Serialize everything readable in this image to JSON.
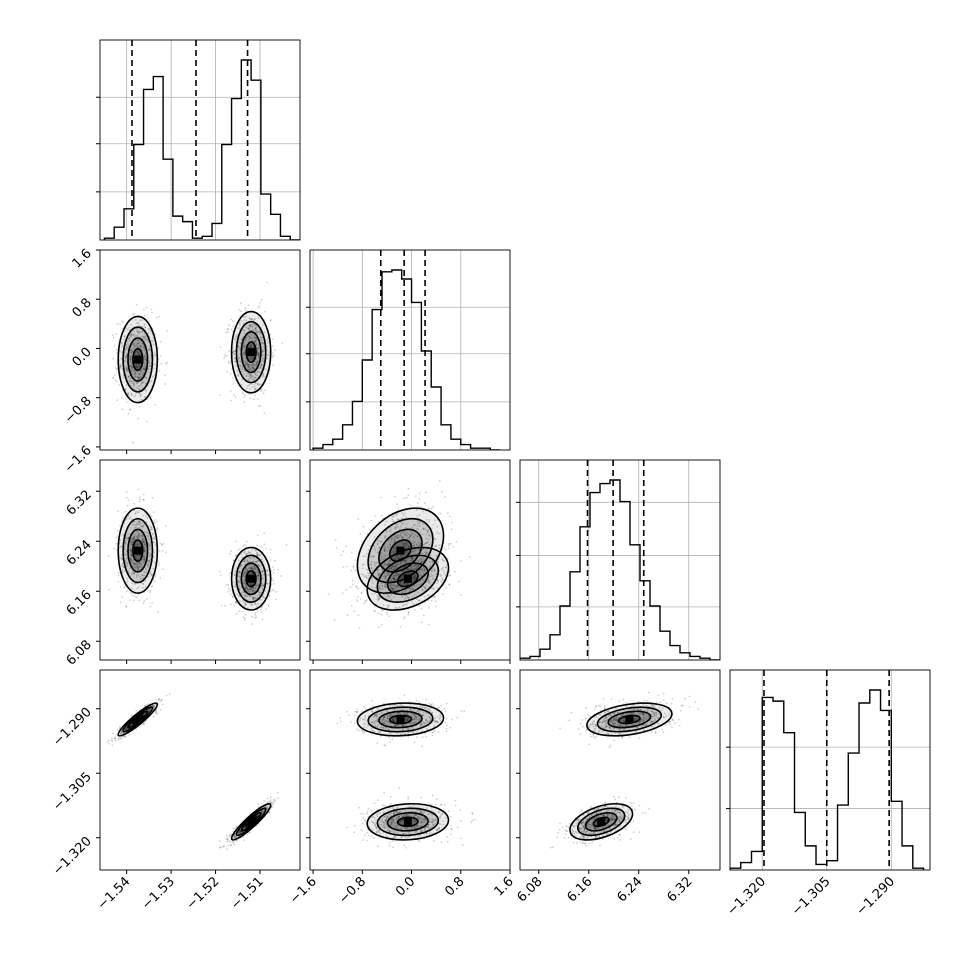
{
  "chart_data": {
    "type": "corner",
    "grid": true,
    "parameters": [
      {
        "axis_ticks": [
          -1.54,
          -1.53,
          -1.52,
          -1.51
        ],
        "tick_labels": [
          "−1.54",
          "−1.53",
          "−1.52",
          "−1.51"
        ],
        "range": [
          -1.546,
          -1.501
        ],
        "quantiles": [
          -1.5388,
          -1.5244,
          -1.5128
        ],
        "histogram": {
          "bin_edges": [
            -1.545,
            -1.5428,
            -1.5406,
            -1.5384,
            -1.5362,
            -1.534,
            -1.5318,
            -1.5296,
            -1.5274,
            -1.5252,
            -1.523,
            -1.5208,
            -1.5186,
            -1.5164,
            -1.5142,
            -1.512,
            -1.5098,
            -1.5076,
            -1.5054,
            -1.5032,
            -1.501
          ],
          "counts": [
            0.01,
            0.07,
            0.17,
            0.52,
            0.82,
            0.89,
            0.44,
            0.13,
            0.1,
            0.01,
            0.02,
            0.09,
            0.52,
            0.77,
            0.98,
            0.87,
            0.25,
            0.14,
            0.02,
            0.0
          ]
        },
        "hist_gridlines": [
          0.29,
          0.58,
          0.86
        ]
      },
      {
        "axis_ticks": [
          -1.6,
          -0.8,
          0.0,
          0.8,
          1.6
        ],
        "tick_labels": [
          "−1.6",
          "−0.8",
          "0.0",
          "0.8",
          "1.6"
        ],
        "range": [
          -1.65,
          1.6
        ],
        "quantiles": [
          -0.5,
          -0.12,
          0.22
        ],
        "histogram": {
          "bin_edges": [
            -1.6,
            -1.44,
            -1.28,
            -1.12,
            -0.96,
            -0.8,
            -0.64,
            -0.48,
            -0.32,
            -0.16,
            0.0,
            0.16,
            0.32,
            0.48,
            0.64,
            0.8,
            0.96,
            1.12,
            1.28,
            1.44
          ],
          "counts": [
            0.01,
            0.03,
            0.06,
            0.14,
            0.27,
            0.5,
            0.78,
            0.99,
            1.0,
            0.95,
            0.82,
            0.55,
            0.35,
            0.14,
            0.06,
            0.03,
            0.01,
            0.01,
            0.0
          ]
        },
        "hist_gridlines": [
          0.29,
          0.58,
          0.86
        ]
      },
      {
        "axis_ticks": [
          6.08,
          6.16,
          6.24,
          6.32
        ],
        "tick_labels": [
          "6.08",
          "6.16",
          "6.24",
          "6.32"
        ],
        "range": [
          6.05,
          6.37
        ],
        "quantiles": [
          6.158,
          6.199,
          6.248
        ],
        "histogram": {
          "bin_edges": [
            6.05,
            6.066,
            6.082,
            6.098,
            6.114,
            6.13,
            6.146,
            6.162,
            6.178,
            6.194,
            6.21,
            6.226,
            6.242,
            6.258,
            6.274,
            6.29,
            6.306,
            6.322,
            6.338,
            6.354,
            6.37
          ],
          "counts": [
            0.01,
            0.02,
            0.06,
            0.14,
            0.3,
            0.49,
            0.74,
            0.93,
            0.98,
            1.0,
            0.88,
            0.64,
            0.44,
            0.3,
            0.16,
            0.08,
            0.04,
            0.02,
            0.01,
            0.0
          ]
        },
        "hist_gridlines": [
          0.32,
          0.63,
          0.95
        ]
      },
      {
        "axis_ticks": [
          -1.32,
          -1.305,
          -1.29
        ],
        "tick_labels": [
          "−1.320",
          "−1.305",
          "−1.290"
        ],
        "range": [
          -1.3275,
          -1.281
        ],
        "quantiles": [
          -1.3196,
          -1.305,
          -1.2905
        ],
        "histogram": {
          "bin_edges": [
            -1.3275,
            -1.325,
            -1.3225,
            -1.32,
            -1.3175,
            -1.315,
            -1.3125,
            -1.31,
            -1.3075,
            -1.305,
            -1.3025,
            -1.3,
            -1.2975,
            -1.295,
            -1.2925,
            -1.29,
            -1.2875,
            -1.285,
            -1.2825
          ],
          "counts": [
            0.01,
            0.04,
            0.1,
            0.93,
            0.91,
            0.74,
            0.31,
            0.13,
            0.03,
            0.05,
            0.35,
            0.63,
            0.9,
            0.97,
            0.86,
            0.37,
            0.13,
            0.01
          ]
        },
        "hist_gridlines": [
          0.37,
          0.74
        ]
      }
    ],
    "posterior_modes": [
      {
        "weight": 0.5,
        "mean": [
          -1.5375,
          -0.18,
          6.225,
          -1.2925
        ],
        "sd": [
          0.0022,
          0.35,
          0.034,
          0.0019
        ]
      },
      {
        "weight": 0.5,
        "mean": [
          -1.512,
          -0.06,
          6.18,
          -1.3163
        ],
        "sd": [
          0.0022,
          0.33,
          0.025,
          0.0021
        ]
      }
    ],
    "contour_levels": "0.5, 1, 1.5, 2 sigma"
  }
}
